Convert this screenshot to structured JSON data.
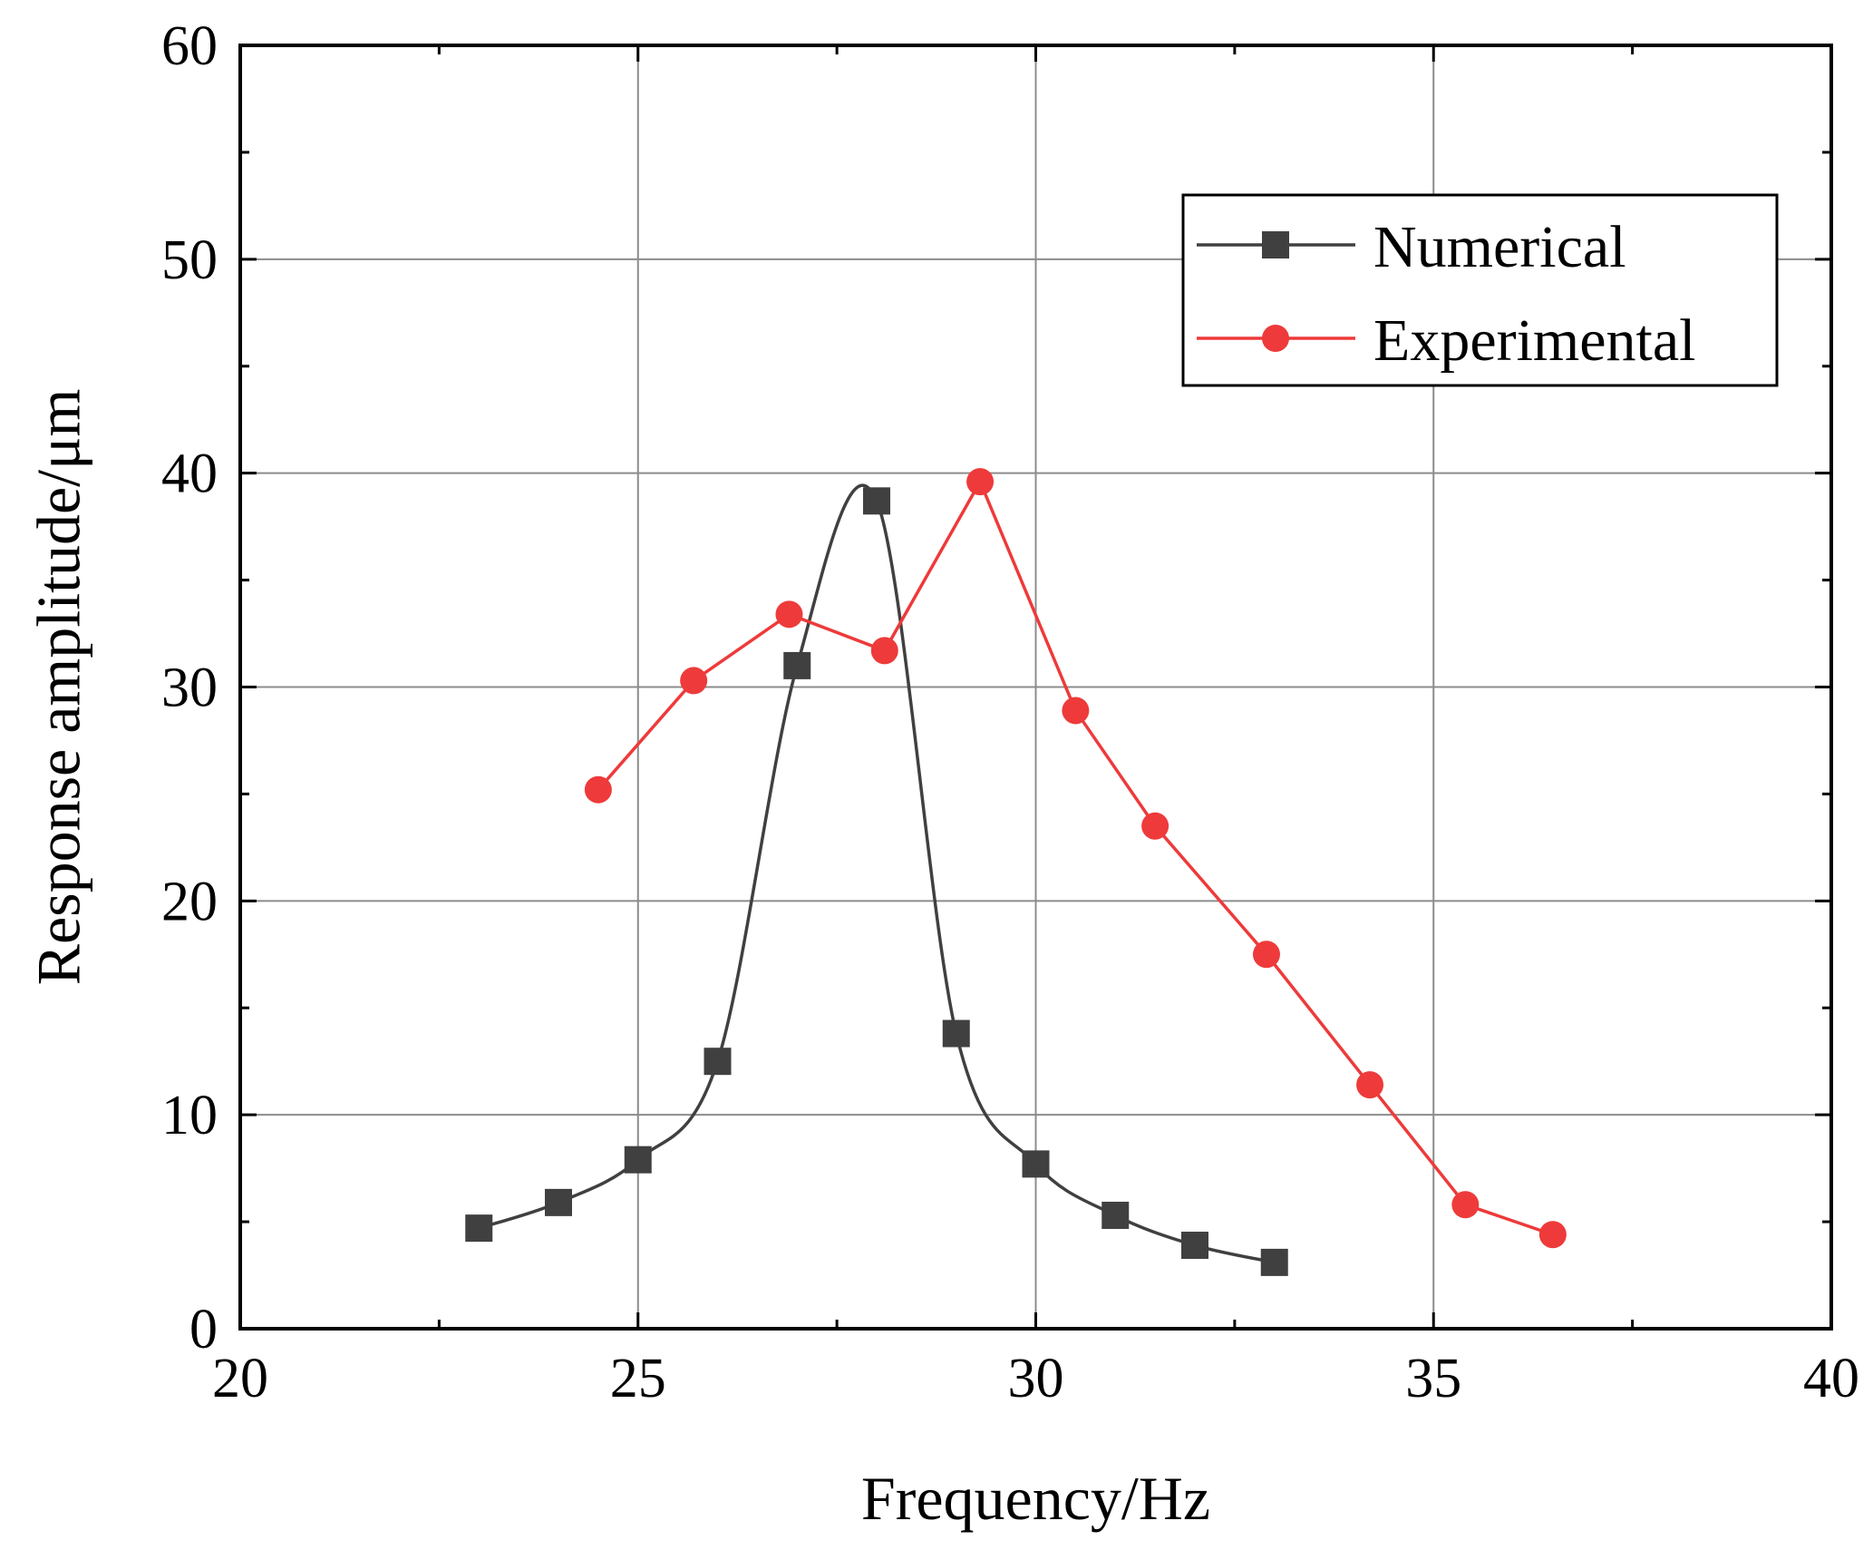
{
  "chart_data": {
    "type": "line",
    "title": "",
    "xlabel": "Frequency/Hz",
    "ylabel": "Response amplitude/μm",
    "xlim": [
      20,
      40
    ],
    "ylim": [
      0,
      60
    ],
    "xticks": [
      20,
      25,
      30,
      35,
      40
    ],
    "yticks": [
      0,
      10,
      20,
      30,
      40,
      50,
      60
    ],
    "grid": true,
    "legend_position": "top-right",
    "series": [
      {
        "name": "Numerical",
        "color": "#404040",
        "marker": "square",
        "smooth": true,
        "x": [
          23,
          24,
          25,
          26,
          27,
          28,
          29,
          30,
          31,
          32,
          33
        ],
        "y": [
          4.7,
          5.9,
          7.9,
          12.5,
          31.0,
          38.7,
          13.8,
          7.7,
          5.3,
          3.9,
          3.1
        ]
      },
      {
        "name": "Experimental",
        "color": "#ee3a3a",
        "marker": "circle",
        "smooth": false,
        "x": [
          24.5,
          25.7,
          26.9,
          28.1,
          29.3,
          30.5,
          31.5,
          32.9,
          34.2,
          35.4,
          36.5
        ],
        "y": [
          25.2,
          30.3,
          33.4,
          31.7,
          39.6,
          28.9,
          23.5,
          17.5,
          11.4,
          5.8,
          4.4
        ]
      }
    ]
  }
}
